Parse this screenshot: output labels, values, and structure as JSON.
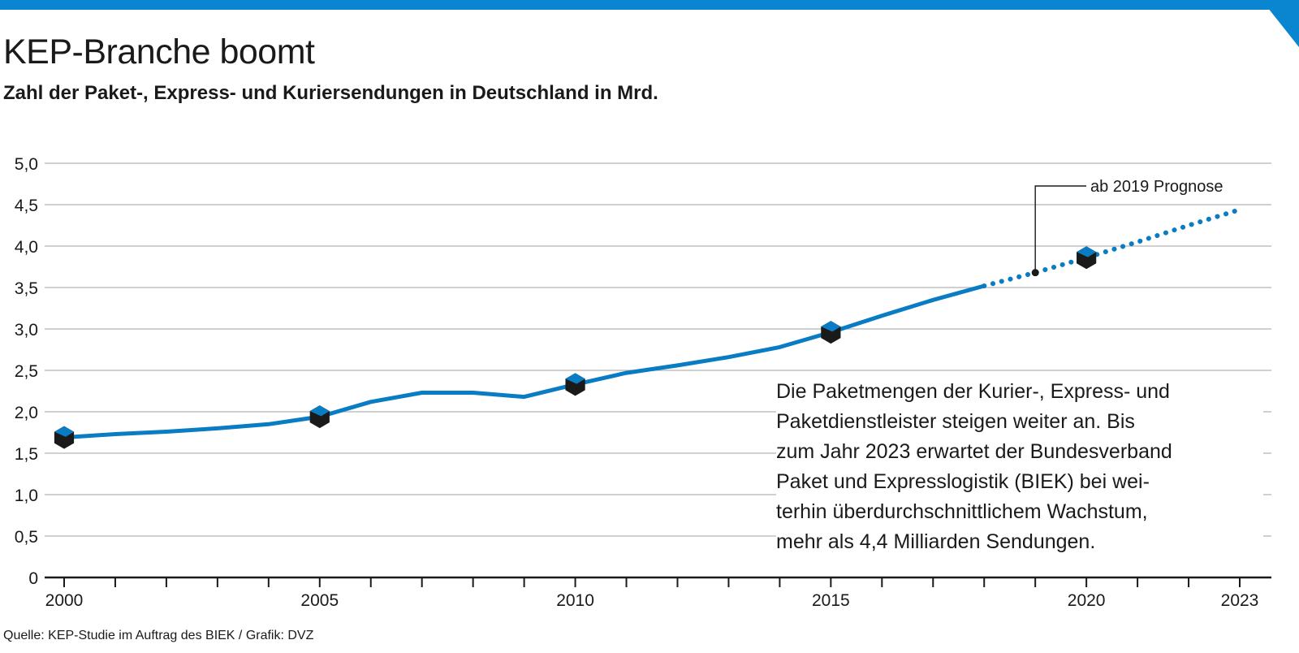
{
  "header": {
    "title": "KEP-Branche boomt",
    "subtitle": "Zahl der Paket-, Express- und Kuriersendungen in Deutschland in Mrd."
  },
  "note": {
    "lines": [
      "Die Paketmengen der Kurier-, Express- und",
      "Paketdienstleister steigen weiter an. Bis",
      "zum Jahr 2023 erwartet der Bundesverband",
      "Paket und Expresslogistik (BIEK) bei wei-",
      "terhin überdurchschnittlichem Wachstum,",
      "mehr als 4,4 Milliarden Sendungen."
    ]
  },
  "footer": {
    "source": "Quelle: KEP-Studie im Auftrag des BIEK / Grafik: DVZ"
  },
  "colors": {
    "accent": "#0a86d0",
    "line": "#0a7cc4",
    "grid": "#b5b5b5",
    "axis": "#1a1a1a",
    "marker_dark": "#1a1a1a"
  },
  "chart_data": {
    "type": "line",
    "title": "KEP-Branche boomt",
    "subtitle": "Zahl der Paket-, Express- und Kuriersendungen in Deutschland in Mrd.",
    "xlabel": "",
    "ylabel": "",
    "xlim": [
      2000,
      2023
    ],
    "ylim": [
      0,
      5
    ],
    "x_ticks": [
      "2000",
      "2005",
      "2010",
      "2015",
      "2020",
      "2023"
    ],
    "y_ticks": [
      "0",
      "0,5",
      "1,0",
      "1,5",
      "2,0",
      "2,5",
      "3,0",
      "3,5",
      "4,0",
      "4,5",
      "5,0"
    ],
    "grid": true,
    "series": [
      {
        "style": "solid",
        "x": [
          2000,
          2001,
          2002,
          2003,
          2004,
          2005,
          2006,
          2007,
          2008,
          2009,
          2010,
          2011,
          2012,
          2013,
          2014,
          2015,
          2016,
          2017,
          2018
        ],
        "values": [
          1.69,
          1.73,
          1.76,
          1.8,
          1.85,
          1.94,
          2.12,
          2.23,
          2.23,
          2.18,
          2.33,
          2.47,
          2.56,
          2.66,
          2.78,
          2.96,
          3.16,
          3.35,
          3.52
        ]
      },
      {
        "style": "dotted",
        "x": [
          2018,
          2019,
          2020,
          2021,
          2022,
          2023
        ],
        "values": [
          3.52,
          3.68,
          3.86,
          4.05,
          4.25,
          4.44
        ]
      }
    ],
    "markers": [
      {
        "x": 2000,
        "y": 1.69
      },
      {
        "x": 2005,
        "y": 1.94
      },
      {
        "x": 2010,
        "y": 2.33
      },
      {
        "x": 2015,
        "y": 2.96
      },
      {
        "x": 2020,
        "y": 3.86
      }
    ],
    "annotations": [
      {
        "text": "ab 2019 Prognose",
        "x": 2019,
        "y": 3.68
      }
    ]
  }
}
